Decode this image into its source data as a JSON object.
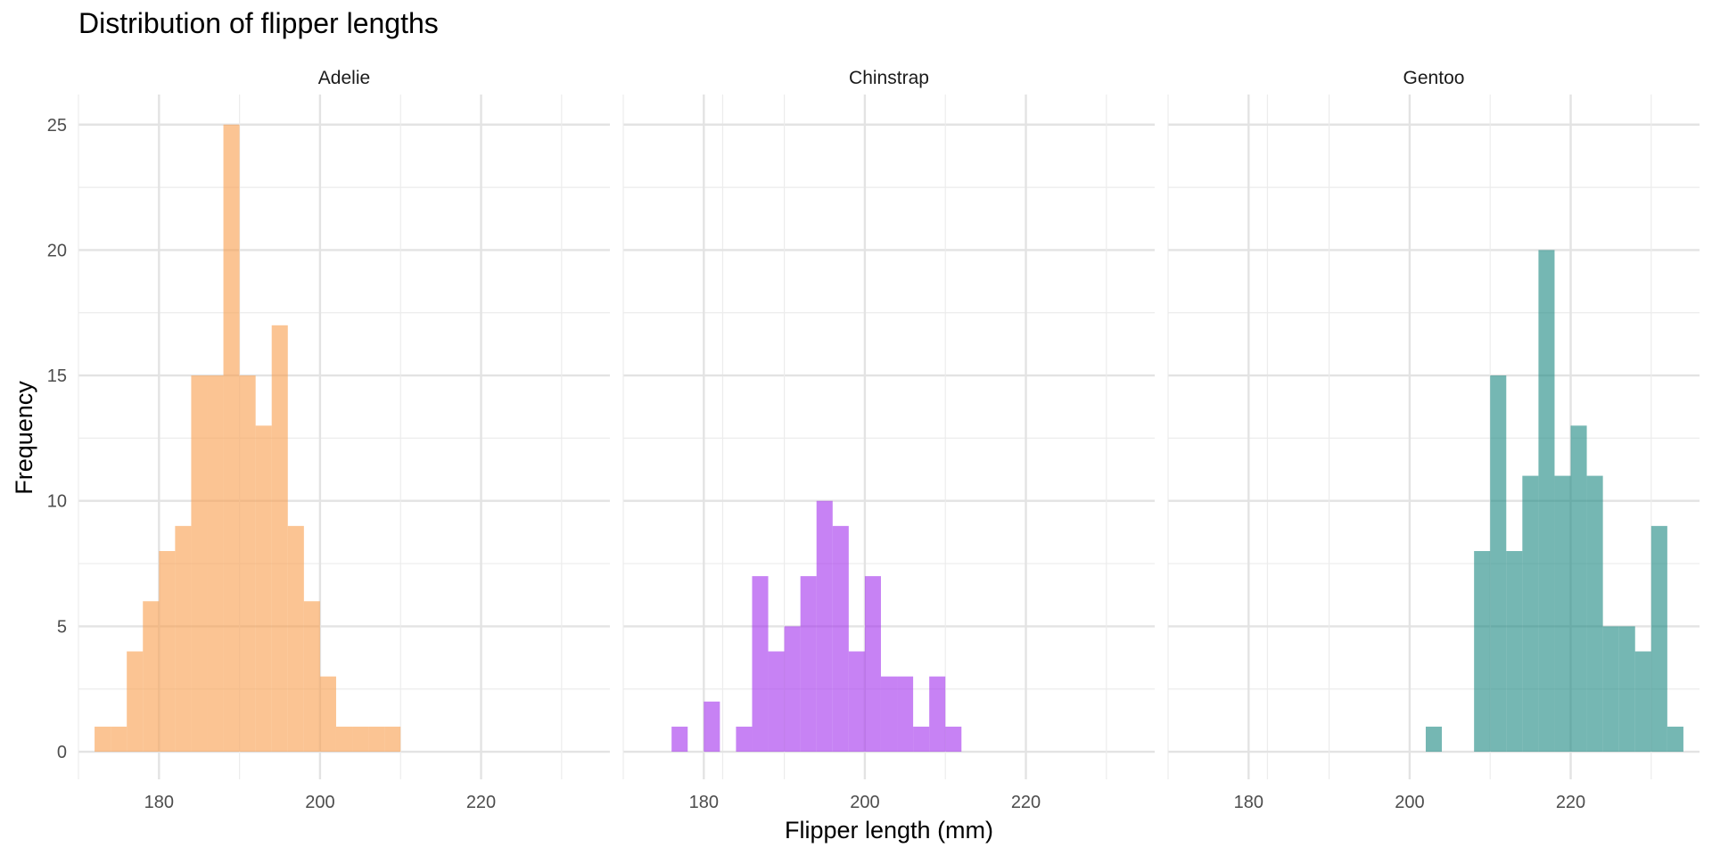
{
  "chart_data": {
    "type": "bar",
    "title": "Distribution of flipper lengths",
    "xlabel": "Flipper length (mm)",
    "ylabel": "Frequency",
    "xlim": [
      170,
      236
    ],
    "ylim": [
      -1.1,
      26.2
    ],
    "x_ticks": [
      180,
      200,
      220
    ],
    "x_tick_labels": [
      "180",
      "200",
      "220"
    ],
    "y_ticks": [
      0,
      5,
      10,
      15,
      20,
      25
    ],
    "y_tick_labels": [
      "0",
      "5",
      "10",
      "15",
      "20",
      "25"
    ],
    "grid": true,
    "bin_width": 2,
    "panels": [
      {
        "name": "Adelie",
        "color": "#f8a050",
        "bins": [
          {
            "x": 173,
            "y": 1
          },
          {
            "x": 175,
            "y": 1
          },
          {
            "x": 177,
            "y": 4
          },
          {
            "x": 179,
            "y": 6
          },
          {
            "x": 181,
            "y": 8
          },
          {
            "x": 183,
            "y": 9
          },
          {
            "x": 185,
            "y": 15
          },
          {
            "x": 187,
            "y": 15
          },
          {
            "x": 189,
            "y": 25
          },
          {
            "x": 191,
            "y": 15
          },
          {
            "x": 193,
            "y": 13
          },
          {
            "x": 195,
            "y": 17
          },
          {
            "x": 197,
            "y": 9
          },
          {
            "x": 199,
            "y": 6
          },
          {
            "x": 201,
            "y": 3
          },
          {
            "x": 203,
            "y": 1
          },
          {
            "x": 205,
            "y": 1
          },
          {
            "x": 207,
            "y": 1
          },
          {
            "x": 209,
            "y": 1
          }
        ]
      },
      {
        "name": "Chinstrap",
        "color": "#a435ee",
        "bins": [
          {
            "x": 177,
            "y": 1
          },
          {
            "x": 181,
            "y": 2
          },
          {
            "x": 185,
            "y": 1
          },
          {
            "x": 187,
            "y": 7
          },
          {
            "x": 189,
            "y": 4
          },
          {
            "x": 191,
            "y": 5
          },
          {
            "x": 193,
            "y": 7
          },
          {
            "x": 195,
            "y": 10
          },
          {
            "x": 197,
            "y": 9
          },
          {
            "x": 199,
            "y": 4
          },
          {
            "x": 201,
            "y": 7
          },
          {
            "x": 203,
            "y": 3
          },
          {
            "x": 205,
            "y": 3
          },
          {
            "x": 207,
            "y": 1
          },
          {
            "x": 209,
            "y": 3
          },
          {
            "x": 211,
            "y": 1
          }
        ]
      },
      {
        "name": "Gentoo",
        "color": "#208a85",
        "bins": [
          {
            "x": 203,
            "y": 1
          },
          {
            "x": 209,
            "y": 8
          },
          {
            "x": 211,
            "y": 15
          },
          {
            "x": 213,
            "y": 8
          },
          {
            "x": 215,
            "y": 11
          },
          {
            "x": 217,
            "y": 20
          },
          {
            "x": 219,
            "y": 11
          },
          {
            "x": 221,
            "y": 13
          },
          {
            "x": 223,
            "y": 11
          },
          {
            "x": 225,
            "y": 5
          },
          {
            "x": 227,
            "y": 5
          },
          {
            "x": 229,
            "y": 4
          },
          {
            "x": 231,
            "y": 9
          },
          {
            "x": 233,
            "y": 1
          }
        ]
      }
    ]
  }
}
